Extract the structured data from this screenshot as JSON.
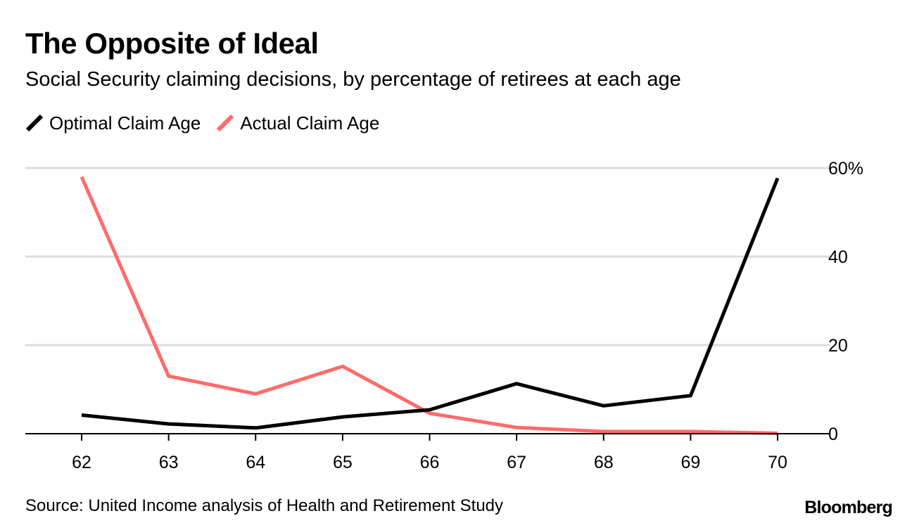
{
  "header": {
    "title": "The Opposite of Ideal",
    "subtitle": "Social Security claiming decisions, by percentage of retirees at each age"
  },
  "footer": {
    "source": "Source: United Income analysis of Health and Retirement Study",
    "brand": "Bloomberg"
  },
  "chart_data": {
    "type": "line",
    "x": [
      62,
      63,
      64,
      65,
      66,
      67,
      68,
      69,
      70
    ],
    "x_tick_labels": [
      "62",
      "63",
      "64",
      "65",
      "66",
      "67",
      "68",
      "69",
      "70"
    ],
    "y_tick_labels": [
      "60%",
      "40",
      "20",
      "0"
    ],
    "y_ticks": [
      60,
      40,
      20,
      0
    ],
    "ylim": [
      0,
      60
    ],
    "y_axis_side": "right",
    "grid": true,
    "legend_position": "top-left",
    "series": [
      {
        "name": "Optimal Claim Age",
        "color": "#000000",
        "values": [
          4.2,
          2.2,
          1.3,
          3.8,
          5.4,
          11.3,
          6.3,
          8.6,
          57.7
        ]
      },
      {
        "name": "Actual Claim Age",
        "color": "#ff6b6b",
        "values": [
          58.0,
          13.0,
          9.0,
          15.2,
          4.6,
          1.4,
          0.5,
          0.5,
          0.1
        ]
      }
    ]
  }
}
